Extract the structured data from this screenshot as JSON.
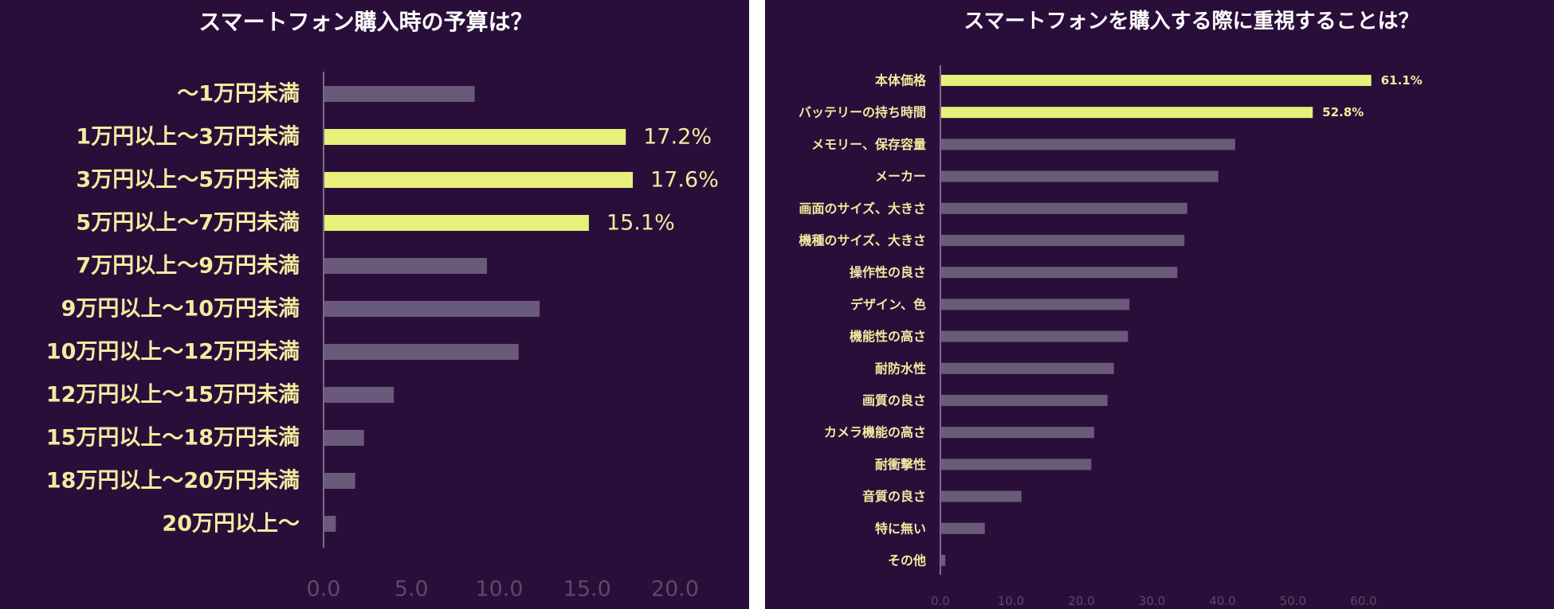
{
  "chart_data": [
    {
      "type": "bar",
      "orientation": "horizontal",
      "title": "スマートフォン購入時の予算は？",
      "categories": [
        "～1万円未満",
        "1万円以上～3万円未満",
        "3万円以上～5万円未満",
        "5万円以上～7万円未満",
        "7万円以上～9万円未満",
        "9万円以上～10万円未満",
        "10万円以上～12万円未満",
        "12万円以上～15万円未満",
        "15万円以上～18万円未満",
        "18万円以上～20万円未満",
        "20万円以上～"
      ],
      "values": [
        8.6,
        17.2,
        17.6,
        15.1,
        9.3,
        12.3,
        11.1,
        4.0,
        2.3,
        1.8,
        0.7
      ],
      "data_labels": [
        "",
        "17.2%",
        "17.6%",
        "15.1%",
        "",
        "",
        "",
        "",
        "",
        "",
        ""
      ],
      "highlight": [
        false,
        true,
        true,
        true,
        false,
        false,
        false,
        false,
        false,
        false,
        false
      ],
      "xlim": [
        0,
        21.5
      ],
      "xticks": [
        0,
        5,
        10,
        15,
        20
      ],
      "xtick_labels": [
        "0.0",
        "5.0",
        "10.0",
        "15.0",
        "20.0"
      ],
      "xlabel": "",
      "ylabel": "",
      "grid": false
    },
    {
      "type": "bar",
      "orientation": "horizontal",
      "title": "スマートフォンを購入する際に重視することは？",
      "categories": [
        "本体価格",
        "バッテリーの持ち時間",
        "メモリー、保存容量",
        "メーカー",
        "画面のサイズ、大きさ",
        "機種のサイズ、大きさ",
        "操作性の良さ",
        "デザイン、色",
        "機能性の高さ",
        "耐防水性",
        "画質の良さ",
        "カメラ機能の高さ",
        "耐衝撃性",
        "音質の良さ",
        "特に無い",
        "その他"
      ],
      "values": [
        61.1,
        52.8,
        41.8,
        39.4,
        35.0,
        34.6,
        33.6,
        26.8,
        26.6,
        24.6,
        23.7,
        21.8,
        21.4,
        11.5,
        6.3,
        0.7
      ],
      "data_labels": [
        "61.1%",
        "52.8%",
        "",
        "",
        "",
        "",
        "",
        "",
        "",
        "",
        "",
        "",
        "",
        "",
        "",
        ""
      ],
      "highlight": [
        true,
        true,
        false,
        false,
        false,
        false,
        false,
        false,
        false,
        false,
        false,
        false,
        false,
        false,
        false,
        false
      ],
      "xlim": [
        0,
        66
      ],
      "xticks": [
        0,
        10,
        20,
        30,
        40,
        50,
        60
      ],
      "xtick_labels": [
        "0.0",
        "10.0",
        "20.0",
        "30.0",
        "40.0",
        "50.0",
        "60.0"
      ],
      "xlabel": "",
      "ylabel": "",
      "grid": false
    }
  ],
  "colors": {
    "background": "#2a0e3a",
    "highlight_bar": "#e6f07a",
    "normal_bar": "#6a5a7a",
    "label_text": "#f0eca0",
    "value_text": "#f0eca0",
    "axis_line": "#7a6a88",
    "tick_text": "#5a4a66",
    "title_text": "#ffffff"
  }
}
